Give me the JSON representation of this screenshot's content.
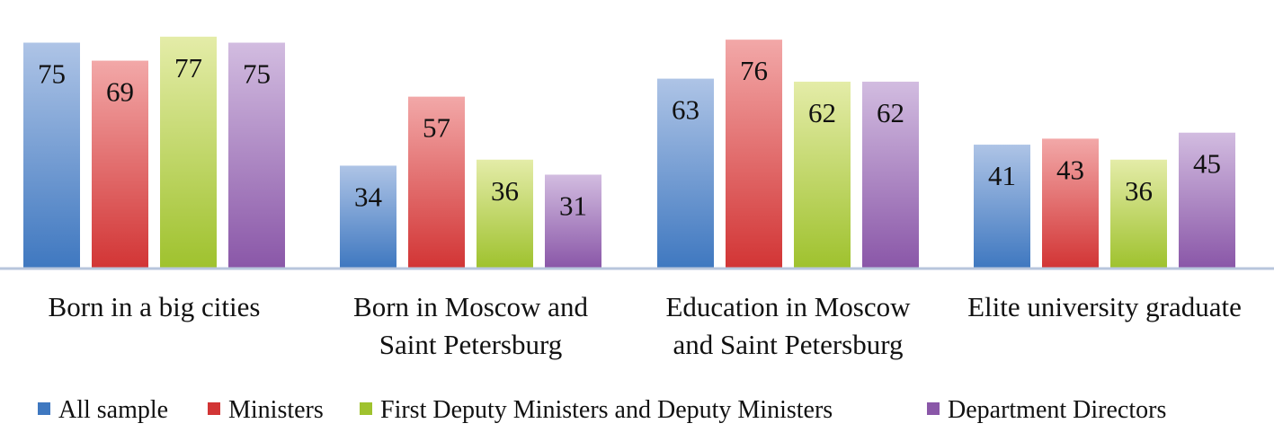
{
  "chart_data": {
    "type": "bar",
    "title": "",
    "xlabel": "",
    "ylabel": "",
    "ylim": [
      0,
      80
    ],
    "grid": false,
    "legend_position": "bottom",
    "categories": [
      [
        "Born in a big cities"
      ],
      [
        "Born in Moscow and",
        "Saint Petersburg"
      ],
      [
        "Education in Moscow",
        "and Saint Petersburg"
      ],
      [
        "Elite university graduate"
      ]
    ],
    "series": [
      {
        "name": "All sample",
        "values": [
          75,
          34,
          63,
          41
        ],
        "color_top": "#aec4e6",
        "color_bottom": "#3f78c0"
      },
      {
        "name": "Ministers",
        "values": [
          69,
          57,
          76,
          43
        ],
        "color_top": "#f2a8a8",
        "color_bottom": "#d23535"
      },
      {
        "name": "First Deputy Ministers and Deputy Ministers",
        "values": [
          77,
          36,
          62,
          36
        ],
        "color_top": "#e4eca8",
        "color_bottom": "#9fc22e"
      },
      {
        "name": "Department Directors",
        "values": [
          75,
          31,
          62,
          45
        ],
        "color_top": "#d2bce0",
        "color_bottom": "#8a57a8"
      }
    ]
  }
}
